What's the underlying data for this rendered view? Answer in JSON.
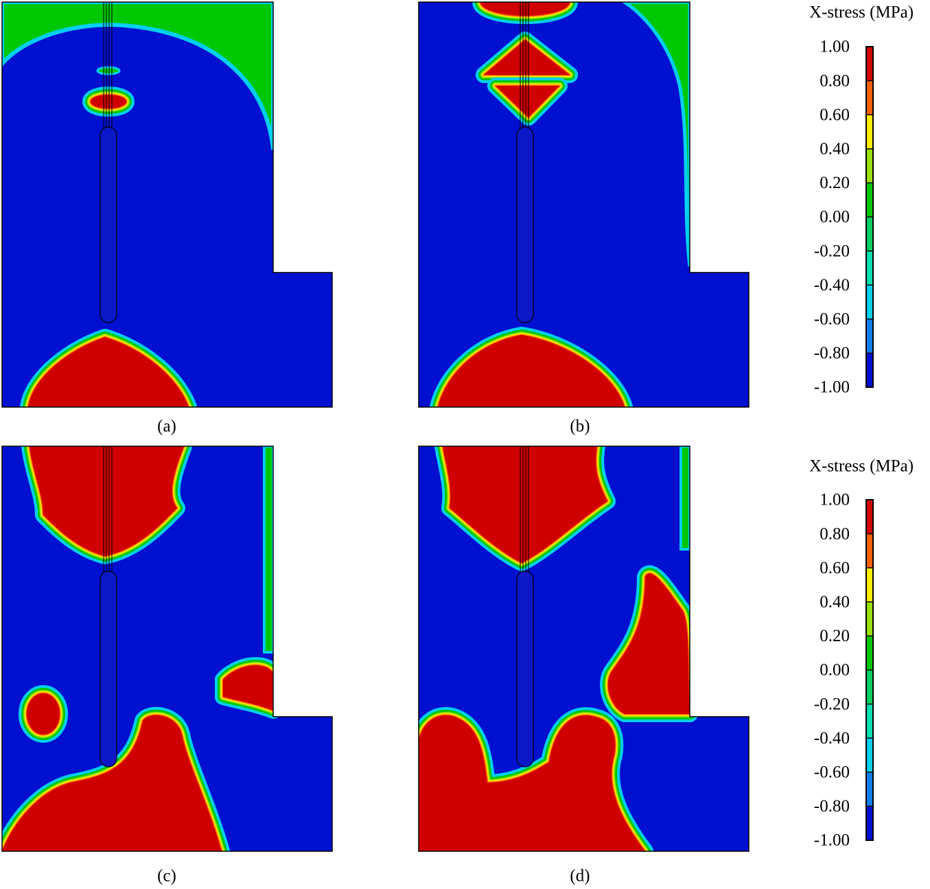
{
  "panels": [
    {
      "label": "(a)"
    },
    {
      "label": "(b)"
    },
    {
      "label": "(c)"
    },
    {
      "label": "(d)"
    }
  ],
  "colorbars": [
    {
      "title": "X-stress (MPa)",
      "ticks": [
        {
          "value": 1,
          "label": "1.00"
        },
        {
          "value": 0.8,
          "label": "0.80"
        },
        {
          "value": 0.6,
          "label": "0.60"
        },
        {
          "value": 0.4,
          "label": "0.40"
        },
        {
          "value": 0.2,
          "label": "0.20"
        },
        {
          "value": 0,
          "label": "0.00"
        },
        {
          "value": -0.2,
          "label": "-0.20"
        },
        {
          "value": -0.4,
          "label": "-0.40"
        },
        {
          "value": -0.6,
          "label": "-0.60"
        },
        {
          "value": -0.8,
          "label": "-0.80"
        },
        {
          "value": -1,
          "label": "-1.00"
        }
      ]
    },
    {
      "title": "X-stress (MPa)",
      "ticks": [
        {
          "value": 1,
          "label": "1.00"
        },
        {
          "value": 0.8,
          "label": "0.80"
        },
        {
          "value": 0.6,
          "label": "0.60"
        },
        {
          "value": 0.4,
          "label": "0.40"
        },
        {
          "value": 0.2,
          "label": "0.20"
        },
        {
          "value": 0,
          "label": "0.00"
        },
        {
          "value": -0.2,
          "label": "-0.20"
        },
        {
          "value": -0.4,
          "label": "-0.40"
        },
        {
          "value": -0.6,
          "label": "-0.60"
        },
        {
          "value": -0.8,
          "label": "-0.80"
        },
        {
          "value": -1,
          "label": "-1.00"
        }
      ]
    }
  ]
}
